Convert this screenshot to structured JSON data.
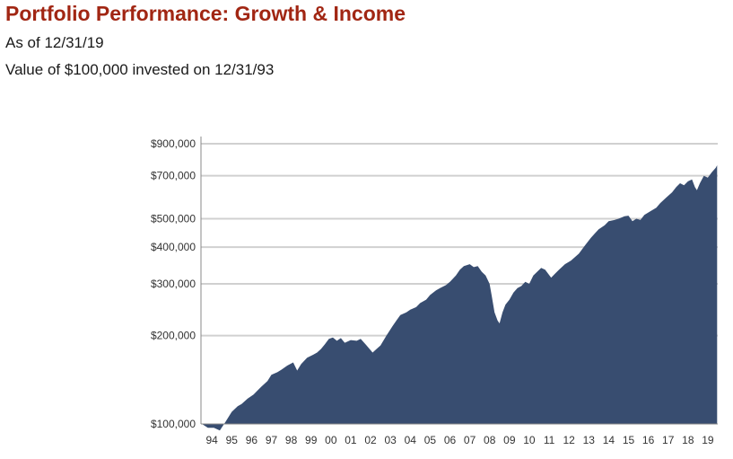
{
  "header": {
    "title": "Portfolio Performance: Growth & Income",
    "as_of": "As of 12/31/19",
    "subtitle": "Value of $100,000 invested on 12/31/93"
  },
  "colors": {
    "title": "#a12613",
    "area_fill": "#384d70",
    "gridline": "#d0d0d0",
    "axis": "#888888"
  },
  "chart_data": {
    "type": "area",
    "title": "",
    "xlabel": "",
    "ylabel": "",
    "y_scale": "log",
    "ylim": [
      100000,
      900000
    ],
    "xlim": [
      1993.95,
      2020.0
    ],
    "grid": true,
    "y_ticks": [
      {
        "value": 100000,
        "label": "$100,000"
      },
      {
        "value": 200000,
        "label": "$200,000"
      },
      {
        "value": 300000,
        "label": "$300,000"
      },
      {
        "value": 400000,
        "label": "$400,000"
      },
      {
        "value": 500000,
        "label": "$500,000"
      },
      {
        "value": 700000,
        "label": "$700,000"
      },
      {
        "value": 900000,
        "label": "$900,000"
      }
    ],
    "x_ticks": [
      {
        "value": 1994.5,
        "label": "94"
      },
      {
        "value": 1995.5,
        "label": "95"
      },
      {
        "value": 1996.5,
        "label": "96"
      },
      {
        "value": 1997.5,
        "label": "97"
      },
      {
        "value": 1998.5,
        "label": "98"
      },
      {
        "value": 1999.5,
        "label": "99"
      },
      {
        "value": 2000.5,
        "label": "00"
      },
      {
        "value": 2001.5,
        "label": "01"
      },
      {
        "value": 2002.5,
        "label": "02"
      },
      {
        "value": 2003.5,
        "label": "03"
      },
      {
        "value": 2004.5,
        "label": "04"
      },
      {
        "value": 2005.5,
        "label": "05"
      },
      {
        "value": 2006.5,
        "label": "06"
      },
      {
        "value": 2007.5,
        "label": "07"
      },
      {
        "value": 2008.5,
        "label": "08"
      },
      {
        "value": 2009.5,
        "label": "09"
      },
      {
        "value": 2010.5,
        "label": "10"
      },
      {
        "value": 2011.5,
        "label": "11"
      },
      {
        "value": 2012.5,
        "label": "12"
      },
      {
        "value": 2013.5,
        "label": "13"
      },
      {
        "value": 2014.5,
        "label": "14"
      },
      {
        "value": 2015.5,
        "label": "15"
      },
      {
        "value": 2016.5,
        "label": "16"
      },
      {
        "value": 2017.5,
        "label": "17"
      },
      {
        "value": 2018.5,
        "label": "18"
      },
      {
        "value": 2019.5,
        "label": "19"
      }
    ],
    "series": [
      {
        "points": [
          [
            1994.0,
            100000
          ],
          [
            1994.3,
            97000
          ],
          [
            1994.6,
            97000
          ],
          [
            1994.9,
            95000
          ],
          [
            1995.2,
            102000
          ],
          [
            1995.5,
            110000
          ],
          [
            1995.8,
            115000
          ],
          [
            1996.0,
            117000
          ],
          [
            1996.3,
            122000
          ],
          [
            1996.6,
            126000
          ],
          [
            1996.8,
            130000
          ],
          [
            1997.0,
            134000
          ],
          [
            1997.3,
            140000
          ],
          [
            1997.5,
            147000
          ],
          [
            1997.8,
            150000
          ],
          [
            1998.0,
            153000
          ],
          [
            1998.3,
            158000
          ],
          [
            1998.6,
            162000
          ],
          [
            1998.8,
            152000
          ],
          [
            1999.0,
            160000
          ],
          [
            1999.3,
            168000
          ],
          [
            1999.6,
            172000
          ],
          [
            1999.8,
            175000
          ],
          [
            2000.0,
            180000
          ],
          [
            2000.2,
            187000
          ],
          [
            2000.4,
            195000
          ],
          [
            2000.6,
            197000
          ],
          [
            2000.8,
            192000
          ],
          [
            2001.0,
            196000
          ],
          [
            2001.2,
            189000
          ],
          [
            2001.5,
            193000
          ],
          [
            2001.8,
            192000
          ],
          [
            2002.0,
            195000
          ],
          [
            2002.3,
            185000
          ],
          [
            2002.6,
            175000
          ],
          [
            2002.8,
            180000
          ],
          [
            2003.0,
            185000
          ],
          [
            2003.3,
            200000
          ],
          [
            2003.6,
            215000
          ],
          [
            2003.8,
            225000
          ],
          [
            2004.0,
            235000
          ],
          [
            2004.3,
            240000
          ],
          [
            2004.5,
            245000
          ],
          [
            2004.8,
            250000
          ],
          [
            2005.0,
            258000
          ],
          [
            2005.3,
            265000
          ],
          [
            2005.5,
            275000
          ],
          [
            2005.8,
            285000
          ],
          [
            2006.0,
            290000
          ],
          [
            2006.3,
            297000
          ],
          [
            2006.5,
            305000
          ],
          [
            2006.8,
            320000
          ],
          [
            2007.0,
            335000
          ],
          [
            2007.2,
            345000
          ],
          [
            2007.5,
            350000
          ],
          [
            2007.7,
            342000
          ],
          [
            2007.9,
            345000
          ],
          [
            2008.1,
            330000
          ],
          [
            2008.3,
            320000
          ],
          [
            2008.5,
            300000
          ],
          [
            2008.6,
            275000
          ],
          [
            2008.75,
            240000
          ],
          [
            2008.9,
            225000
          ],
          [
            2009.0,
            220000
          ],
          [
            2009.15,
            240000
          ],
          [
            2009.3,
            255000
          ],
          [
            2009.5,
            265000
          ],
          [
            2009.7,
            280000
          ],
          [
            2009.9,
            290000
          ],
          [
            2010.1,
            295000
          ],
          [
            2010.3,
            305000
          ],
          [
            2010.5,
            300000
          ],
          [
            2010.7,
            320000
          ],
          [
            2010.9,
            330000
          ],
          [
            2011.1,
            340000
          ],
          [
            2011.3,
            335000
          ],
          [
            2011.6,
            315000
          ],
          [
            2011.8,
            325000
          ],
          [
            2012.0,
            335000
          ],
          [
            2012.3,
            350000
          ],
          [
            2012.6,
            360000
          ],
          [
            2012.8,
            370000
          ],
          [
            2013.0,
            380000
          ],
          [
            2013.3,
            405000
          ],
          [
            2013.6,
            430000
          ],
          [
            2013.8,
            445000
          ],
          [
            2014.0,
            460000
          ],
          [
            2014.3,
            475000
          ],
          [
            2014.5,
            490000
          ],
          [
            2014.8,
            495000
          ],
          [
            2015.0,
            500000
          ],
          [
            2015.3,
            510000
          ],
          [
            2015.5,
            512000
          ],
          [
            2015.7,
            490000
          ],
          [
            2015.9,
            500000
          ],
          [
            2016.1,
            495000
          ],
          [
            2016.3,
            515000
          ],
          [
            2016.6,
            530000
          ],
          [
            2016.9,
            545000
          ],
          [
            2017.1,
            565000
          ],
          [
            2017.4,
            590000
          ],
          [
            2017.7,
            615000
          ],
          [
            2017.9,
            640000
          ],
          [
            2018.1,
            660000
          ],
          [
            2018.3,
            650000
          ],
          [
            2018.5,
            670000
          ],
          [
            2018.7,
            680000
          ],
          [
            2018.85,
            640000
          ],
          [
            2018.95,
            625000
          ],
          [
            2019.1,
            660000
          ],
          [
            2019.3,
            700000
          ],
          [
            2019.5,
            690000
          ],
          [
            2019.7,
            720000
          ],
          [
            2019.9,
            745000
          ],
          [
            2019.97,
            760000
          ]
        ]
      }
    ]
  }
}
